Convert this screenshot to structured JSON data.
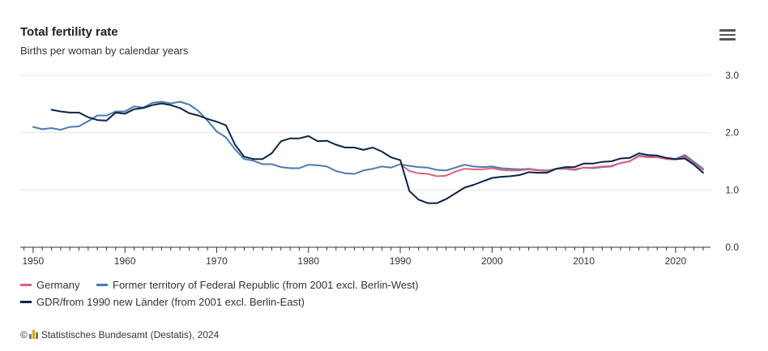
{
  "header": {
    "title": "Total fertility rate",
    "subtitle": "Births per woman by calendar years"
  },
  "menu": {
    "icon": "hamburger-menu-icon"
  },
  "credit": {
    "symbol": "©",
    "logo_icon": "destatis-logo-icon",
    "text": "Statistisches Bundesamt (Destatis), 2024"
  },
  "colors": {
    "germany": "#e0607e",
    "frg": "#4a7ab5",
    "gdr": "#0b2447",
    "grid": "#e6e6e6",
    "axis": "#333333"
  },
  "chart_data": {
    "type": "line",
    "title": "Total fertility rate",
    "subtitle": "Births per woman by calendar years",
    "xlabel": "",
    "ylabel": "",
    "xlim": [
      1948.6,
      2023.8
    ],
    "ylim": [
      0,
      3.0
    ],
    "x_ticks": [
      1950,
      1960,
      1970,
      1980,
      1990,
      2000,
      2010,
      2020
    ],
    "y_ticks": [
      0.0,
      1.0,
      2.0,
      3.0
    ],
    "y_tick_labels": [
      "0.0",
      "1.0",
      "2.0",
      "3.0"
    ],
    "grid": true,
    "legend_position": "bottom",
    "series": [
      {
        "key": "germany",
        "name": "Germany",
        "color": "#e0607e",
        "x": [
          1990,
          1991,
          1992,
          1993,
          1994,
          1995,
          1996,
          1997,
          1998,
          1999,
          2000,
          2001,
          2002,
          2003,
          2004,
          2005,
          2006,
          2007,
          2008,
          2009,
          2010,
          2011,
          2012,
          2013,
          2014,
          2015,
          2016,
          2017,
          2018,
          2019,
          2020,
          2021,
          2022,
          2023
        ],
        "values": [
          1.45,
          1.33,
          1.29,
          1.28,
          1.24,
          1.25,
          1.32,
          1.37,
          1.36,
          1.36,
          1.38,
          1.35,
          1.34,
          1.34,
          1.36,
          1.34,
          1.33,
          1.37,
          1.38,
          1.36,
          1.39,
          1.39,
          1.41,
          1.42,
          1.47,
          1.5,
          1.59,
          1.57,
          1.57,
          1.54,
          1.53,
          1.58,
          1.46,
          1.35
        ]
      },
      {
        "key": "frg",
        "name": "Former territory of Federal Republic (from 2001 excl. Berlin-West)",
        "color": "#4a7ab5",
        "x": [
          1950,
          1951,
          1952,
          1953,
          1954,
          1955,
          1956,
          1957,
          1958,
          1959,
          1960,
          1961,
          1962,
          1963,
          1964,
          1965,
          1966,
          1967,
          1968,
          1969,
          1970,
          1971,
          1972,
          1973,
          1974,
          1975,
          1976,
          1977,
          1978,
          1979,
          1980,
          1981,
          1982,
          1983,
          1984,
          1985,
          1986,
          1987,
          1988,
          1989,
          1990,
          1991,
          1992,
          1993,
          1994,
          1995,
          1996,
          1997,
          1998,
          1999,
          2000,
          2001,
          2002,
          2003,
          2004,
          2005,
          2006,
          2007,
          2008,
          2009,
          2010,
          2011,
          2012,
          2013,
          2014,
          2015,
          2016,
          2017,
          2018,
          2019,
          2020,
          2021,
          2022,
          2023
        ],
        "values": [
          2.1,
          2.06,
          2.08,
          2.05,
          2.1,
          2.11,
          2.2,
          2.3,
          2.3,
          2.37,
          2.37,
          2.46,
          2.44,
          2.52,
          2.54,
          2.51,
          2.54,
          2.49,
          2.38,
          2.21,
          2.02,
          1.92,
          1.71,
          1.54,
          1.51,
          1.45,
          1.45,
          1.4,
          1.38,
          1.38,
          1.44,
          1.43,
          1.41,
          1.33,
          1.29,
          1.28,
          1.34,
          1.37,
          1.41,
          1.39,
          1.45,
          1.42,
          1.4,
          1.39,
          1.35,
          1.34,
          1.39,
          1.44,
          1.41,
          1.4,
          1.41,
          1.38,
          1.37,
          1.36,
          1.37,
          1.35,
          1.34,
          1.37,
          1.37,
          1.35,
          1.39,
          1.38,
          1.4,
          1.41,
          1.47,
          1.5,
          1.6,
          1.58,
          1.58,
          1.55,
          1.54,
          1.61,
          1.49,
          1.37
        ]
      },
      {
        "key": "gdr",
        "name": "GDR/from 1990 new Länder (from 2001 excl. Berlin-East)",
        "color": "#0b2447",
        "x": [
          1952,
          1953,
          1954,
          1955,
          1956,
          1957,
          1958,
          1959,
          1960,
          1961,
          1962,
          1963,
          1964,
          1965,
          1966,
          1967,
          1968,
          1969,
          1970,
          1971,
          1972,
          1973,
          1974,
          1975,
          1976,
          1977,
          1978,
          1979,
          1980,
          1981,
          1982,
          1983,
          1984,
          1985,
          1986,
          1987,
          1988,
          1989,
          1990,
          1991,
          1992,
          1993,
          1994,
          1995,
          1996,
          1997,
          1998,
          1999,
          2000,
          2001,
          2002,
          2003,
          2004,
          2005,
          2006,
          2007,
          2008,
          2009,
          2010,
          2011,
          2012,
          2013,
          2014,
          2015,
          2016,
          2017,
          2018,
          2019,
          2020,
          2021,
          2022,
          2023
        ],
        "values": [
          2.4,
          2.37,
          2.35,
          2.35,
          2.27,
          2.22,
          2.21,
          2.35,
          2.33,
          2.41,
          2.43,
          2.48,
          2.51,
          2.48,
          2.43,
          2.34,
          2.3,
          2.24,
          2.19,
          2.13,
          1.79,
          1.58,
          1.54,
          1.54,
          1.64,
          1.85,
          1.9,
          1.9,
          1.94,
          1.85,
          1.86,
          1.79,
          1.74,
          1.74,
          1.7,
          1.74,
          1.67,
          1.57,
          1.52,
          0.98,
          0.83,
          0.77,
          0.77,
          0.84,
          0.94,
          1.04,
          1.09,
          1.15,
          1.21,
          1.23,
          1.24,
          1.26,
          1.31,
          1.3,
          1.3,
          1.37,
          1.4,
          1.4,
          1.46,
          1.46,
          1.49,
          1.5,
          1.55,
          1.56,
          1.64,
          1.61,
          1.6,
          1.56,
          1.54,
          1.55,
          1.44,
          1.3
        ]
      }
    ]
  }
}
